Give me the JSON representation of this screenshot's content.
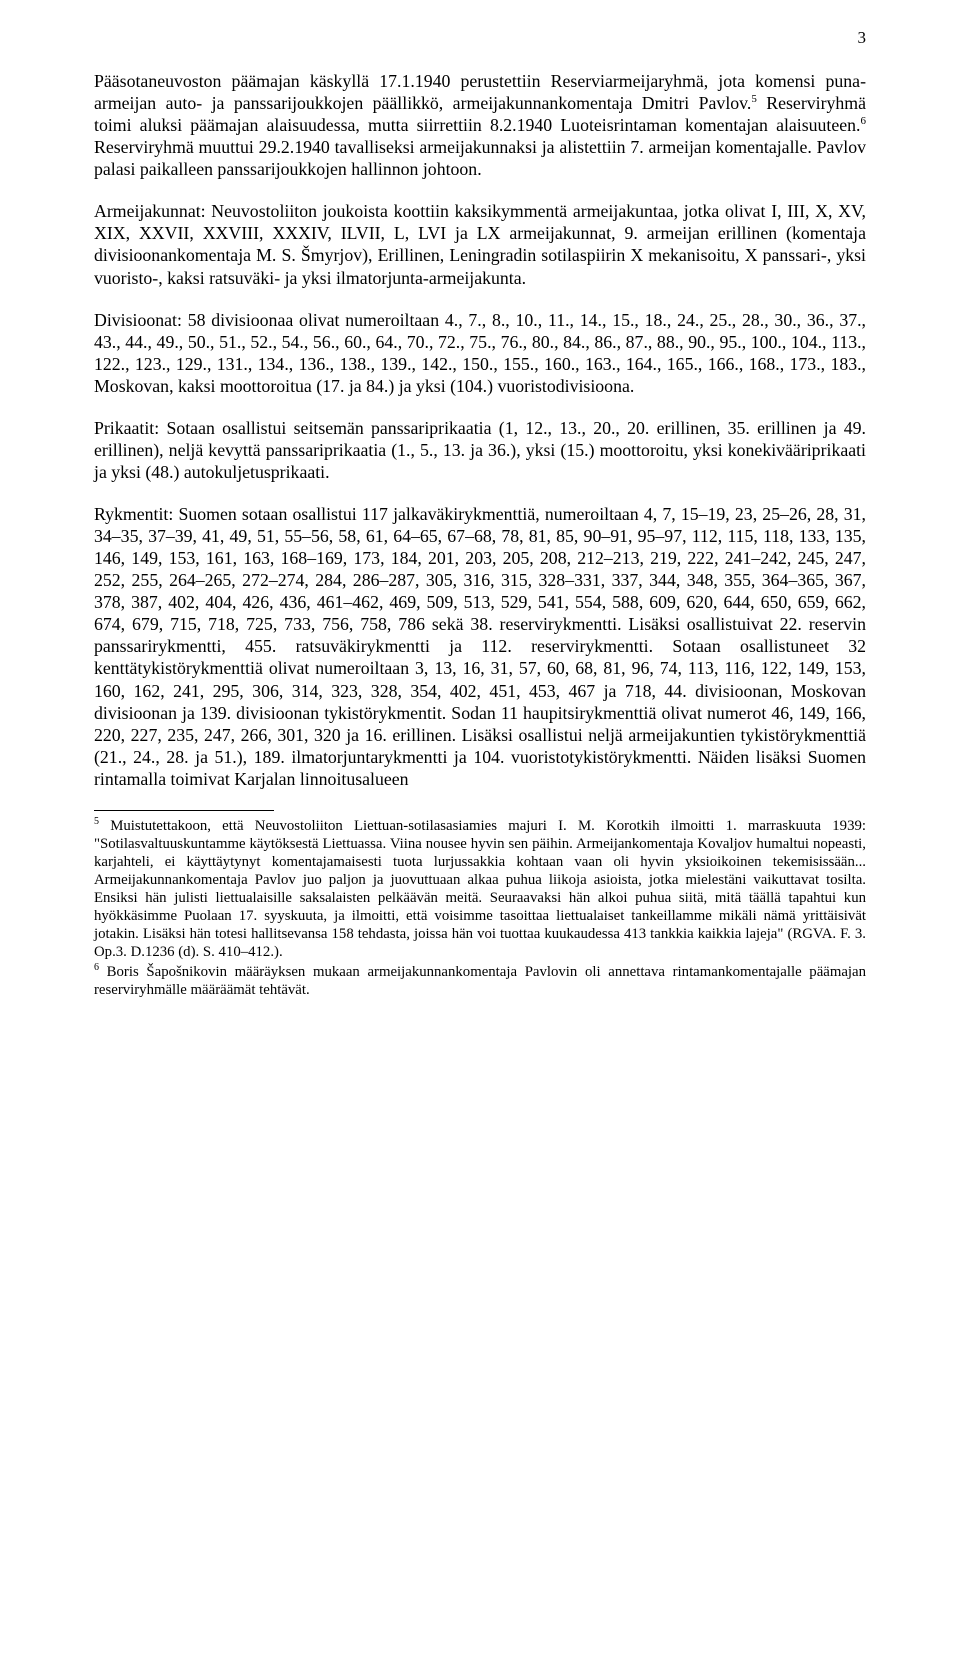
{
  "page_number": "3",
  "paragraphs": {
    "p1a": "Pääsotaneuvoston päämajan käskyllä 17.1.1940 perustettiin Reserviarmeijaryhmä, jota komensi puna-armeijan auto- ja panssarijoukkojen päällikkö, armeijakunnankomentaja Dmitri Pavlov.",
    "p1_fn5": "5",
    "p1b": " Reserviryhmä toimi aluksi päämajan alaisuudessa, mutta siirrettiin 8.2.1940 Luoteisrintaman komentajan alaisuuteen.",
    "p1_fn6": "6",
    "p1c": " Reserviryhmä muuttui 29.2.1940 tavalliseksi armeijakunnaksi ja alistettiin 7. armeijan komentajalle. Pavlov palasi paikalleen panssarijoukkojen hallinnon johtoon.",
    "p2": "Armeijakunnat: Neuvostoliiton joukoista koottiin kaksikymmentä armeijakuntaa, jotka olivat I, III, X, XV, XIX, XXVII, XXVIII, XXXIV, ILVII, L, LVI ja LX armeijakunnat, 9. armeijan erillinen (komentaja divisioonankomentaja M. S. Šmyrjov), Erillinen, Leningradin sotilaspiirin X mekanisoitu, X panssari-, yksi vuoristo-, kaksi ratsuväki- ja yksi ilmatorjunta-armeijakunta.",
    "p3": "Divisioonat: 58 divisioonaa olivat numeroiltaan 4., 7., 8., 10., 11., 14., 15., 18., 24., 25., 28., 30., 36., 37., 43., 44., 49., 50., 51., 52., 54., 56., 60., 64., 70., 72., 75., 76., 80., 84., 86., 87., 88., 90., 95., 100., 104., 113., 122., 123., 129., 131., 134., 136., 138., 139., 142., 150., 155., 160., 163., 164., 165., 166., 168., 173., 183., Moskovan, kaksi moottoroitua (17. ja 84.) ja yksi (104.) vuoristodivisioona.",
    "p4": "Prikaatit: Sotaan osallistui seitsemän panssariprikaatia (1, 12., 13., 20., 20. erillinen, 35. erillinen ja 49. erillinen), neljä kevyttä panssariprikaatia (1., 5., 13. ja 36.), yksi (15.) moottoroitu, yksi konekivääriprikaati ja yksi (48.) autokuljetusprikaati.",
    "p5": "Rykmentit: Suomen sotaan osallistui 117 jalkaväkirykmenttiä, numeroiltaan 4, 7, 15–19, 23, 25–26, 28, 31, 34–35, 37–39, 41, 49, 51, 55–56, 58, 61, 64–65, 67–68, 78, 81, 85, 90–91, 95–97, 112, 115, 118, 133, 135, 146, 149, 153, 161, 163, 168–169, 173, 184, 201, 203, 205, 208, 212–213, 219, 222, 241–242, 245, 247, 252, 255, 264–265, 272–274, 284, 286–287, 305, 316, 315, 328–331, 337, 344, 348, 355, 364–365, 367, 378, 387, 402, 404, 426, 436, 461–462, 469, 509, 513, 529, 541, 554, 588, 609, 620, 644, 650, 659, 662, 674, 679, 715, 718, 725, 733, 756, 758, 786 sekä 38. reservirykmentti. Lisäksi osallistuivat 22. reservin panssarirykmentti, 455. ratsuväkirykmentti ja 112. reservirykmentti. Sotaan osallistuneet 32 kenttätykistörykmenttiä olivat numeroiltaan 3, 13, 16, 31, 57, 60, 68, 81, 96, 74, 113, 116, 122, 149, 153, 160, 162, 241, 295, 306, 314, 323, 328, 354, 402, 451, 453, 467 ja 718, 44. divisioonan, Moskovan divisioonan ja 139. divisioonan tykistörykmentit. Sodan 11 haupitsirykmenttiä olivat numerot 46, 149, 166, 220, 227, 235, 247, 266, 301, 320 ja 16. erillinen. Lisäksi osallistui neljä armeijakuntien tykistörykmenttiä (21., 24., 28. ja 51.), 189. ilmatorjuntarykmentti ja 104. vuoristotykistörykmentti. Näiden lisäksi Suomen rintamalla toimivat Karjalan linnoitusalueen"
  },
  "footnotes": {
    "fn5_marker": "5",
    "fn5_text": " Muistutettakoon, että Neuvostoliiton Liettuan-sotilasasiamies majuri I. M. Korotkih ilmoitti 1. marraskuuta 1939: \"Sotilasvaltuuskuntamme käytöksestä Liettuassa. Viina nousee hyvin sen päihin. Armeijankomentaja Kovaljov humaltui nopeasti, karjahteli, ei käyttäytynyt komentajamaisesti tuota lurjussakkia kohtaan vaan oli hyvin yksioikoinen tekemisissään... Armeijakunnankomentaja Pavlov juo paljon ja juovuttuaan alkaa puhua liikoja asioista, jotka mielestäni vaikuttavat tosilta. Ensiksi hän julisti liettualaisille saksalaisten pelkäävän meitä. Seuraavaksi hän alkoi puhua siitä, mitä täällä tapahtui kun hyökkäsimme Puolaan 17. syyskuuta, ja ilmoitti, että voisimme tasoittaa liettualaiset tankeillamme mikäli nämä yrittäisivät jotakin. Lisäksi hän totesi hallitsevansa 158 tehdasta, joissa hän voi tuottaa kuukaudessa 413 tankkia kaikkia lajeja\" (RGVA. F. 3. Op.3. D.1236 (d). S. 410–412.).",
    "fn6_marker": "6",
    "fn6_text": " Boris Šapošnikovin määräyksen mukaan armeijakunnankomentaja Pavlovin oli annettava rintamankomentajalle päämajan reserviryhmälle määräämät tehtävät."
  }
}
